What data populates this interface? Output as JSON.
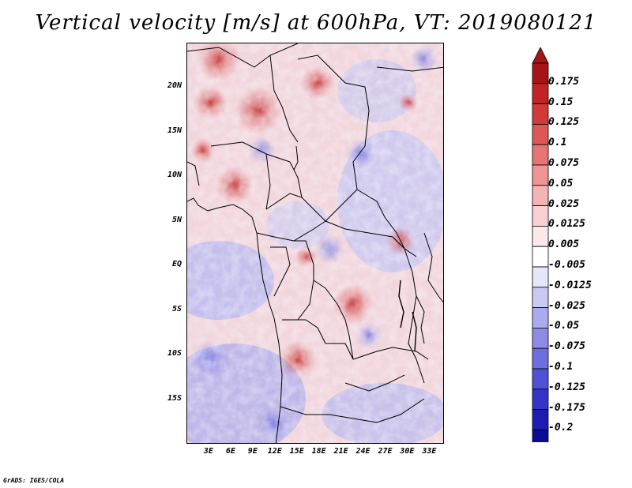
{
  "title": "Vertical velocity [m/s] at 600hPa, VT: 2019080121",
  "credit": "GrADS: IGES/COLA",
  "map": {
    "lat_labels": [
      "20N",
      "15N",
      "10N",
      "5N",
      "EQ",
      "5S",
      "10S",
      "15S"
    ],
    "lon_labels": [
      "3E",
      "6E",
      "9E",
      "12E",
      "15E",
      "18E",
      "21E",
      "24E",
      "27E",
      "30E",
      "33E"
    ],
    "lat_values": [
      20,
      15,
      10,
      5,
      0,
      -5,
      -10,
      -15
    ],
    "lon_values": [
      3,
      6,
      9,
      12,
      15,
      18,
      21,
      24,
      27,
      30,
      33
    ],
    "lat_range": [
      -20,
      25
    ],
    "lon_range": [
      0,
      35
    ]
  },
  "colorbar": {
    "labels": [
      "0.175",
      "0.15",
      "0.125",
      "0.1",
      "0.075",
      "0.05",
      "0.025",
      "0.0125",
      "0.005",
      "-0.005",
      "-0.0125",
      "-0.025",
      "-0.05",
      "-0.075",
      "-0.1",
      "-0.125",
      "-0.175",
      "-0.2"
    ],
    "colors": [
      "#a51515",
      "#c22323",
      "#d23a3a",
      "#de5757",
      "#e67474",
      "#ee9494",
      "#f5b4b4",
      "#f9d0d0",
      "#fce8e8",
      "#ffffff",
      "#e6e6fb",
      "#c9c9f4",
      "#aaaaee",
      "#8c8ce6",
      "#6e6edf",
      "#5050d6",
      "#3434c8",
      "#1c1cb0",
      "#0b0b95"
    ],
    "top_arrow_color": "#a51515",
    "bottom_arrow_color": "#0b0b95"
  },
  "colors": {
    "positive": "#d23a3a",
    "negative": "#5050d6",
    "boundary": "#000000"
  }
}
